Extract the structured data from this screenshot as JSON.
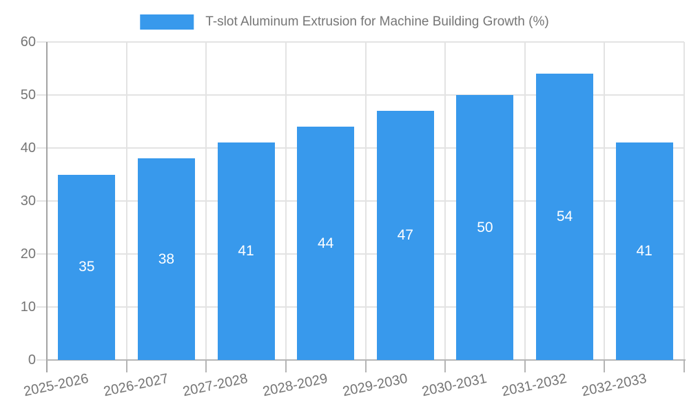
{
  "legend": {
    "label": "T-slot Aluminum Extrusion for Machine Building Growth (%)"
  },
  "chart_data": {
    "type": "bar",
    "title": "T-slot Aluminum Extrusion for Machine Building Growth (%)",
    "categories": [
      "2025-2026",
      "2026-2027",
      "2027-2028",
      "2028-2029",
      "2029-2030",
      "2030-2031",
      "2031-2032",
      "2032-2033"
    ],
    "values": [
      35,
      38,
      41,
      44,
      47,
      50,
      54,
      41
    ],
    "xlabel": "",
    "ylabel": "",
    "ylim": [
      0,
      60
    ],
    "yticks": [
      0,
      10,
      20,
      30,
      40,
      50,
      60
    ],
    "grid": "on",
    "legend_position": "top-center",
    "bar_label_position": "inside-center",
    "colors": {
      "bar": "#3899ec",
      "bar_value_text": "#ffffff",
      "axis_text": "#757575",
      "gridline": "#e3e3e3",
      "y_axis_line": "#a3a3a3",
      "baseline": "#b5b5b5",
      "tick": "#b5b5b5",
      "background": "#ffffff"
    }
  }
}
